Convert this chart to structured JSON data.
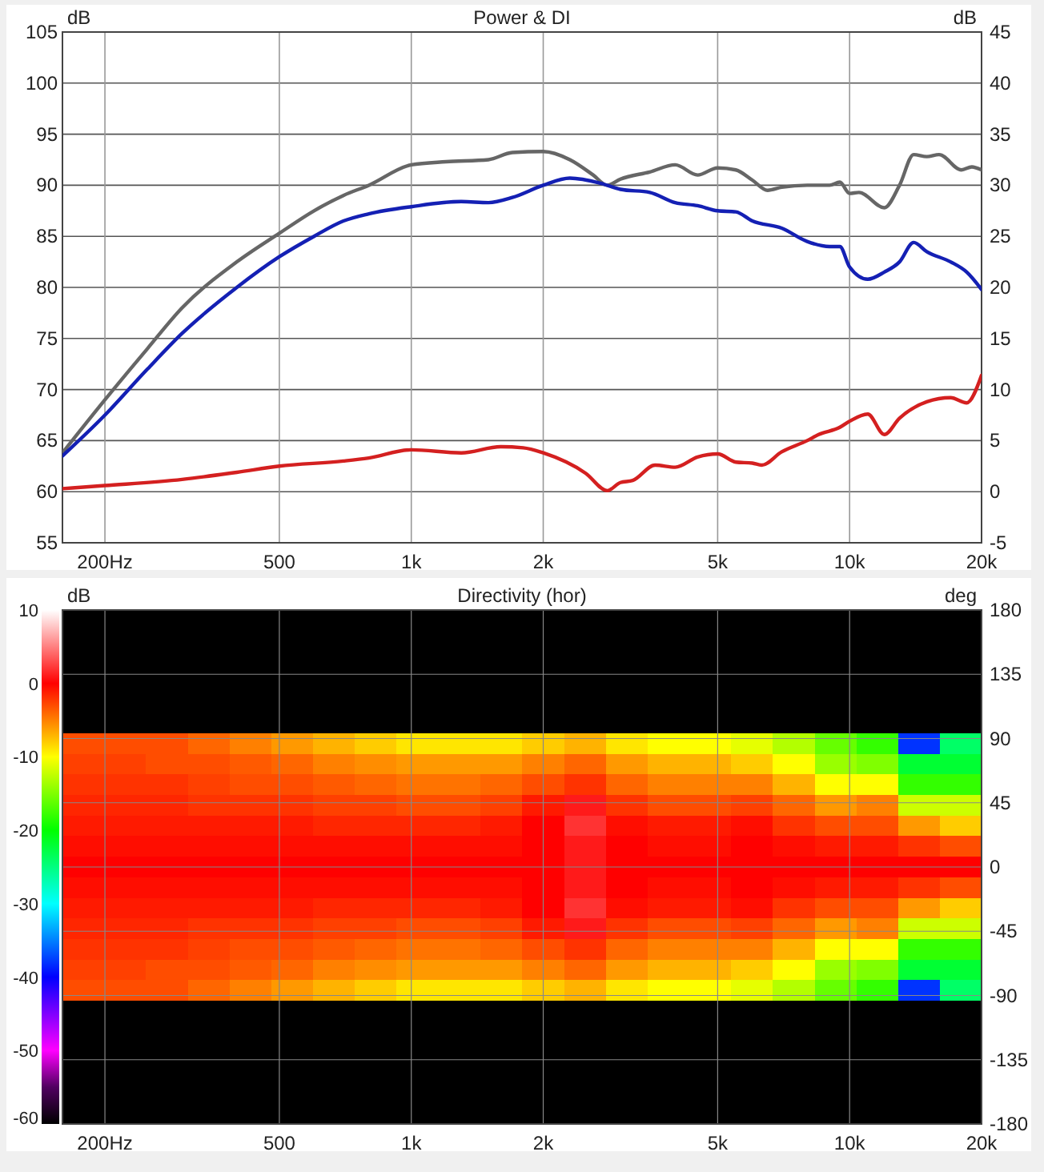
{
  "chart_data": [
    {
      "type": "line",
      "title": "Power & DI",
      "ylabel": "dB",
      "y2label": "dB",
      "grid": true,
      "xlim": [
        160,
        20000
      ],
      "xticks": [
        {
          "value": 200,
          "label": "200Hz"
        },
        500,
        {
          "value": 1000,
          "label": "1k"
        },
        {
          "value": 2000,
          "label": "2k"
        },
        {
          "value": 5000,
          "label": "5k"
        },
        {
          "value": 10000,
          "label": "10k"
        },
        {
          "value": 20000,
          "label": "20k"
        }
      ],
      "log": "x",
      "ylim": [
        55,
        105
      ],
      "yticks": [
        55,
        60,
        65,
        70,
        75,
        80,
        85,
        90,
        95,
        100,
        105
      ],
      "y2lim": [
        -5,
        45
      ],
      "y2ticks": [
        -5,
        0,
        5,
        10,
        15,
        20,
        25,
        30,
        35,
        40,
        45
      ],
      "series": [
        {
          "color": "#666666",
          "x": [
            160,
            200,
            250,
            300,
            400,
            500,
            600,
            700,
            800,
            1000,
            1200,
            1500,
            1700,
            2000,
            2300,
            2600,
            2800,
            3000,
            3500,
            4000,
            4500,
            5000,
            5500,
            6000,
            6500,
            7000,
            8000,
            9000,
            9500,
            10000,
            10500,
            12000,
            13000,
            14000,
            15000,
            16000,
            18000,
            19000,
            20000
          ],
          "values": [
            63.8,
            69,
            74,
            78,
            82.5,
            85.3,
            87.5,
            89,
            90,
            92,
            92.3,
            92.5,
            93.2,
            93.3,
            92.5,
            91,
            90,
            90.6,
            91.3,
            92,
            91,
            91.7,
            91.5,
            90.5,
            89.5,
            89.8,
            90,
            90,
            90.3,
            89.2,
            89.3,
            87.8,
            90,
            93,
            92.8,
            93,
            91.5,
            91.8,
            91.5
          ]
        },
        {
          "color": "#1420b4",
          "x": [
            160,
            200,
            250,
            300,
            400,
            500,
            600,
            700,
            800,
            1000,
            1300,
            1500,
            1700,
            2000,
            2300,
            2700,
            3000,
            3500,
            4000,
            4500,
            5000,
            5500,
            6000,
            7000,
            8000,
            9000,
            9500,
            10000,
            11000,
            12000,
            13000,
            14000,
            15000,
            17000,
            18500,
            20000
          ],
          "values": [
            63.5,
            67.5,
            72,
            75.5,
            80,
            83,
            85,
            86.5,
            87.2,
            87.9,
            88.4,
            88.3,
            88.8,
            90,
            90.7,
            90.2,
            89.6,
            89.3,
            88.3,
            88,
            87.5,
            87.4,
            86.5,
            85.8,
            84.5,
            84,
            84,
            82,
            80.8,
            81.5,
            82.5,
            84.4,
            83.5,
            82.5,
            81.5,
            79.8
          ]
        },
        {
          "color": "#d42020",
          "axis": "y2",
          "x": [
            160,
            200,
            300,
            400,
            500,
            700,
            800,
            1000,
            1300,
            1600,
            1800,
            2000,
            2500,
            2800,
            3000,
            3200,
            3600,
            4000,
            4500,
            5000,
            5500,
            6000,
            6300,
            7000,
            8000,
            8500,
            9500,
            10000,
            11000,
            12000,
            13000,
            15000,
            17000,
            18500,
            20000
          ],
          "values": [
            0.3,
            0.6,
            1.2,
            1.9,
            2.5,
            3,
            3.3,
            4.1,
            3.8,
            4.4,
            4.3,
            3.8,
            1.8,
            0.1,
            0.9,
            1.1,
            2.6,
            2.4,
            3.4,
            3.7,
            2.9,
            2.8,
            2.6,
            3.9,
            5,
            5.6,
            6.3,
            6.9,
            7.6,
            5.6,
            7.2,
            8.8,
            9.2,
            8.7,
            11.4
          ]
        }
      ]
    },
    {
      "type": "heatmap",
      "title": "Directivity (hor)",
      "y2label": "deg",
      "clabel": "dB",
      "grid": true,
      "log": "x",
      "xlim": [
        160,
        20000
      ],
      "xticks": [
        {
          "value": 200,
          "label": "200Hz"
        },
        500,
        {
          "value": 1000,
          "label": "1k"
        },
        {
          "value": 2000,
          "label": "2k"
        },
        {
          "value": 5000,
          "label": "5k"
        },
        {
          "value": 10000,
          "label": "10k"
        },
        {
          "value": 20000,
          "label": "20k"
        }
      ],
      "y2lim": [
        -180,
        180
      ],
      "y2ticks": [
        180,
        135,
        90,
        45,
        0,
        -45,
        -90,
        -135,
        -180
      ],
      "clim": [
        -60,
        10
      ],
      "cticks": [
        10,
        0,
        -10,
        -20,
        -30,
        -40,
        -50,
        -60
      ],
      "x": [
        179,
        222,
        277,
        345,
        430,
        535,
        667,
        830,
        1030,
        1290,
        1600,
        2000,
        2490,
        3100,
        3860,
        4810,
        5990,
        7460,
        9290,
        11570,
        14410,
        17940
      ],
      "y_categories": [
        null,
        null,
        null,
        null,
        null,
        null,
        null,
        null,
        null,
        null,
        null,
        null,
        null,
        null,
        null,
        null,
        null,
        null,
        null,
        null,
        null,
        null,
        null,
        null,
        null
      ],
      "cells": [
        [
          -60,
          -60,
          -60,
          -60,
          -60,
          -60,
          -60,
          -60,
          -60,
          -60,
          -60,
          -60,
          -60,
          -60,
          -60,
          -60,
          -60,
          -60,
          -60,
          -60,
          -60,
          -60
        ],
        [
          -60,
          -60,
          -60,
          -60,
          -60,
          -60,
          -60,
          -60,
          -60,
          -60,
          -60,
          -60,
          -60,
          -60,
          -60,
          -60,
          -60,
          -60,
          -60,
          -60,
          -60,
          -60
        ],
        [
          -60,
          -60,
          -60,
          -60,
          -60,
          -60,
          -60,
          -60,
          -60,
          -60,
          -60,
          -60,
          -60,
          -60,
          -60,
          -60,
          -60,
          -60,
          -60,
          -60,
          -60,
          -60
        ],
        [
          -60,
          -60,
          -60,
          -60,
          -60,
          -60,
          -60,
          -60,
          -60,
          -60,
          -60,
          -60,
          -60,
          -60,
          -60,
          -60,
          -60,
          -60,
          -60,
          -60,
          -60,
          -60
        ],
        [
          -60,
          -60,
          -60,
          -60,
          -60,
          -60,
          -60,
          -60,
          -60,
          -60,
          -60,
          -60,
          -60,
          -60,
          -60,
          -60,
          -60,
          -60,
          -60,
          -60,
          -60,
          -60
        ],
        [
          -60,
          -60,
          -60,
          -60,
          -60,
          -60,
          -60,
          -60,
          -60,
          -60,
          -60,
          -60,
          -60,
          -60,
          -60,
          -60,
          -60,
          -60,
          -60,
          -60,
          -60,
          -60
        ],
        [
          -3,
          -3,
          -3,
          -4,
          -5,
          -6,
          -7,
          -8,
          -9,
          -9,
          -9,
          -8,
          -7,
          -9,
          -10,
          -10,
          -11,
          -13,
          -16,
          -18,
          -38,
          -24
        ],
        [
          -2.5,
          -2.5,
          -3,
          -3,
          -3.5,
          -4,
          -5,
          -5.5,
          -6,
          -6,
          -6,
          -5,
          -4,
          -6,
          -7,
          -7,
          -8,
          -10,
          -14,
          -15,
          -22,
          -22
        ],
        [
          -2,
          -2,
          -2,
          -2.5,
          -3,
          -3,
          -3.5,
          -4,
          -4.5,
          -4.5,
          -4,
          -3,
          -2,
          -4,
          -5,
          -5,
          -5,
          -7,
          -10,
          -10,
          -18,
          -18
        ],
        [
          -1.5,
          -1.5,
          -1.5,
          -2,
          -2,
          -2,
          -2.5,
          -2.5,
          -3,
          -3,
          -2.5,
          -1,
          1,
          -2,
          -3,
          -3,
          -2.5,
          -4,
          -6,
          -5,
          -12,
          -12
        ],
        [
          -1,
          -1,
          -1,
          -1,
          -1,
          -1,
          -1.5,
          -1.5,
          -1.5,
          -1.5,
          -1,
          0,
          2,
          -0.5,
          -1,
          -1,
          -0.5,
          -2,
          -3,
          -3,
          -6,
          -8
        ],
        [
          -0.5,
          -0.5,
          -0.5,
          -0.5,
          -0.5,
          -0.5,
          -0.5,
          -0.5,
          -0.5,
          -0.5,
          -0.5,
          0,
          1,
          0,
          -0.5,
          -0.5,
          0,
          -0.5,
          -1,
          -1,
          -2,
          -3
        ],
        [
          0,
          0,
          0,
          0,
          0,
          0,
          0,
          0,
          0,
          0,
          0,
          0,
          1,
          0,
          0,
          0,
          0,
          0,
          0,
          0,
          0,
          0
        ],
        [
          -0.5,
          -0.5,
          -0.5,
          -0.5,
          -0.5,
          -0.5,
          -0.5,
          -0.5,
          -0.5,
          -0.5,
          -0.5,
          0,
          1,
          0,
          -0.5,
          -0.5,
          0,
          -0.5,
          -1,
          -1,
          -2,
          -3
        ],
        [
          -1,
          -1,
          -1,
          -1,
          -1,
          -1,
          -1.5,
          -1.5,
          -1.5,
          -1.5,
          -1,
          0,
          2,
          -0.5,
          -1,
          -1,
          -0.5,
          -2,
          -3,
          -3,
          -6,
          -8
        ],
        [
          -1.5,
          -1.5,
          -1.5,
          -2,
          -2,
          -2,
          -2.5,
          -2.5,
          -3,
          -3,
          -2.5,
          -1,
          1,
          -2,
          -3,
          -3,
          -2.5,
          -4,
          -6,
          -5,
          -12,
          -12
        ],
        [
          -2,
          -2,
          -2,
          -2.5,
          -3,
          -3,
          -3.5,
          -4,
          -4.5,
          -4.5,
          -4,
          -3,
          -2,
          -4,
          -5,
          -5,
          -5,
          -7,
          -10,
          -10,
          -18,
          -18
        ],
        [
          -2.5,
          -2.5,
          -3,
          -3,
          -3.5,
          -4,
          -5,
          -5.5,
          -6,
          -6,
          -6,
          -5,
          -4,
          -6,
          -7,
          -7,
          -8,
          -10,
          -14,
          -15,
          -22,
          -22
        ],
        [
          -3,
          -3,
          -3,
          -4,
          -5,
          -6,
          -7,
          -8,
          -9,
          -9,
          -9,
          -8,
          -7,
          -9,
          -10,
          -10,
          -11,
          -13,
          -16,
          -18,
          -38,
          -24
        ],
        [
          -60,
          -60,
          -60,
          -60,
          -60,
          -60,
          -60,
          -60,
          -60,
          -60,
          -60,
          -60,
          -60,
          -60,
          -60,
          -60,
          -60,
          -60,
          -60,
          -60,
          -60,
          -60
        ],
        [
          -60,
          -60,
          -60,
          -60,
          -60,
          -60,
          -60,
          -60,
          -60,
          -60,
          -60,
          -60,
          -60,
          -60,
          -60,
          -60,
          -60,
          -60,
          -60,
          -60,
          -60,
          -60
        ],
        [
          -60,
          -60,
          -60,
          -60,
          -60,
          -60,
          -60,
          -60,
          -60,
          -60,
          -60,
          -60,
          -60,
          -60,
          -60,
          -60,
          -60,
          -60,
          -60,
          -60,
          -60,
          -60
        ],
        [
          -60,
          -60,
          -60,
          -60,
          -60,
          -60,
          -60,
          -60,
          -60,
          -60,
          -60,
          -60,
          -60,
          -60,
          -60,
          -60,
          -60,
          -60,
          -60,
          -60,
          -60,
          -60
        ],
        [
          -60,
          -60,
          -60,
          -60,
          -60,
          -60,
          -60,
          -60,
          -60,
          -60,
          -60,
          -60,
          -60,
          -60,
          -60,
          -60,
          -60,
          -60,
          -60,
          -60,
          -60,
          -60
        ],
        [
          -60,
          -60,
          -60,
          -60,
          -60,
          -60,
          -60,
          -60,
          -60,
          -60,
          -60,
          -60,
          -60,
          -60,
          -60,
          -60,
          -60,
          -60,
          -60,
          -60,
          -60,
          -60
        ]
      ]
    }
  ]
}
